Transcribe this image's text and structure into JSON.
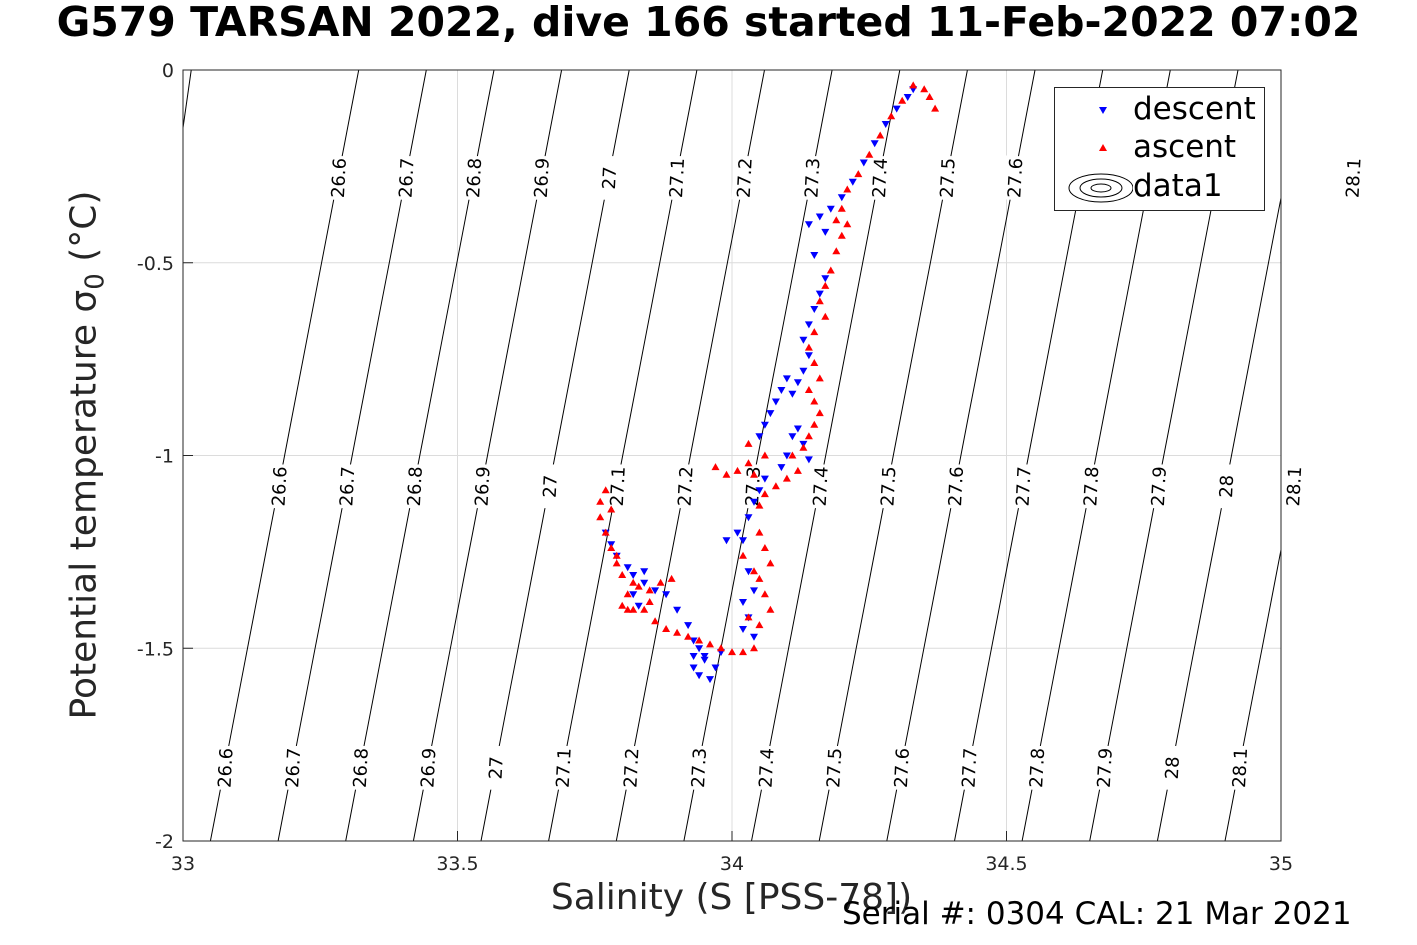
{
  "figure": {
    "title": "G579 TARSAN 2022, dive 166 started 11-Feb-2022 07:02",
    "serial_text": "Serial #: 0304  CAL: 21 Mar 2021"
  },
  "chart_data": {
    "type": "scatter",
    "title": "G579 TARSAN 2022, dive 166 started 11-Feb-2022 07:02",
    "xlabel": "Salinity (S [PSS-78])",
    "ylabel": "Potential temperature σ₀ (°C)",
    "ylabel_main": "Potential temperature σ",
    "ylabel_sub": "0",
    "ylabel_unit": "(°C)",
    "xlim": [
      33,
      35
    ],
    "ylim": [
      -2,
      0
    ],
    "xticks": [
      33,
      33.5,
      34,
      34.5,
      35
    ],
    "yticks": [
      0,
      -0.5,
      -1,
      -1.5,
      -2
    ],
    "xtick_labels": [
      "33",
      "33.5",
      "34",
      "34.5",
      "35"
    ],
    "ytick_labels": [
      "0",
      "-0.5",
      "-1",
      "-1.5",
      "-2"
    ],
    "grid": true,
    "legend_position": "top-right",
    "legend": [
      "descent",
      "ascent",
      "data1"
    ],
    "contours": {
      "name": "data1",
      "levels": [
        26.6,
        26.7,
        26.8,
        26.9,
        27,
        27.1,
        27.2,
        27.3,
        27.4,
        27.5,
        27.6,
        27.7,
        27.8,
        27.9,
        28,
        28.1
      ],
      "level_labels": [
        "26.6",
        "26.7",
        "26.8",
        "26.9",
        "27",
        "27.1",
        "27.2",
        "27.3",
        "27.4",
        "27.5",
        "27.6",
        "27.7",
        "27.8",
        "27.9",
        "28",
        "28.1"
      ],
      "label_rows": [
        {
          "y": -0.28,
          "labels": [
            "26.6",
            "26.7",
            "26.8",
            "26.9",
            "27",
            "27.1",
            "27.2",
            "27.3",
            "27.4",
            "27.5",
            "27.6",
            "27.7",
            "28.1"
          ]
        },
        {
          "y": -1.08,
          "labels": [
            "26.6",
            "26.7",
            "26.8",
            "26.9",
            "27",
            "27.1",
            "27.2",
            "27.3",
            "27.4",
            "27.5",
            "27.6",
            "27.7",
            "27.8",
            "27.9",
            "28",
            "28.1"
          ]
        },
        {
          "y": -1.81,
          "labels": [
            "26.6",
            "26.7",
            "26.8",
            "26.9",
            "27",
            "27.1",
            "27.2",
            "27.3",
            "27.4",
            "27.5",
            "27.6",
            "27.7",
            "27.8",
            "27.9",
            "28",
            "28.1"
          ]
        }
      ],
      "color": "#000000"
    },
    "series": [
      {
        "name": "descent",
        "marker": "triangle-down",
        "color": "#0000ff",
        "points": [
          [
            34.33,
            -0.05
          ],
          [
            34.32,
            -0.07
          ],
          [
            34.3,
            -0.1
          ],
          [
            34.28,
            -0.14
          ],
          [
            34.26,
            -0.19
          ],
          [
            34.24,
            -0.24
          ],
          [
            34.22,
            -0.29
          ],
          [
            34.2,
            -0.33
          ],
          [
            34.18,
            -0.36
          ],
          [
            34.16,
            -0.38
          ],
          [
            34.14,
            -0.4
          ],
          [
            34.17,
            -0.42
          ],
          [
            34.15,
            -0.48
          ],
          [
            34.17,
            -0.54
          ],
          [
            34.16,
            -0.58
          ],
          [
            34.15,
            -0.62
          ],
          [
            34.14,
            -0.66
          ],
          [
            34.13,
            -0.7
          ],
          [
            34.14,
            -0.74
          ],
          [
            34.13,
            -0.78
          ],
          [
            34.12,
            -0.81
          ],
          [
            34.11,
            -0.84
          ],
          [
            34.1,
            -0.8
          ],
          [
            34.09,
            -0.83
          ],
          [
            34.08,
            -0.86
          ],
          [
            34.07,
            -0.89
          ],
          [
            34.06,
            -0.92
          ],
          [
            34.05,
            -0.95
          ],
          [
            34.12,
            -0.93
          ],
          [
            34.13,
            -0.97
          ],
          [
            34.14,
            -1.01
          ],
          [
            34.1,
            -1.0
          ],
          [
            34.11,
            -0.95
          ],
          [
            34.09,
            -1.03
          ],
          [
            34.06,
            -1.06
          ],
          [
            34.05,
            -1.09
          ],
          [
            34.04,
            -1.12
          ],
          [
            34.03,
            -1.16
          ],
          [
            34.01,
            -1.2
          ],
          [
            33.99,
            -1.22
          ],
          [
            34.02,
            -1.22
          ],
          [
            34.03,
            -1.3
          ],
          [
            34.04,
            -1.35
          ],
          [
            34.02,
            -1.38
          ],
          [
            34.03,
            -1.42
          ],
          [
            34.02,
            -1.45
          ],
          [
            34.04,
            -1.47
          ],
          [
            33.77,
            -1.2
          ],
          [
            33.78,
            -1.23
          ],
          [
            33.79,
            -1.26
          ],
          [
            33.81,
            -1.29
          ],
          [
            33.82,
            -1.31
          ],
          [
            33.84,
            -1.33
          ],
          [
            33.86,
            -1.35
          ],
          [
            33.88,
            -1.36
          ],
          [
            33.84,
            -1.3
          ],
          [
            33.82,
            -1.36
          ],
          [
            33.83,
            -1.39
          ],
          [
            33.9,
            -1.4
          ],
          [
            33.92,
            -1.44
          ],
          [
            33.93,
            -1.48
          ],
          [
            33.94,
            -1.5
          ],
          [
            33.95,
            -1.52
          ],
          [
            33.93,
            -1.55
          ],
          [
            33.94,
            -1.57
          ],
          [
            33.96,
            -1.58
          ],
          [
            33.97,
            -1.55
          ],
          [
            33.95,
            -1.53
          ],
          [
            33.98,
            -1.51
          ],
          [
            33.93,
            -1.52
          ]
        ]
      },
      {
        "name": "ascent",
        "marker": "triangle-up",
        "color": "#ff0000",
        "points": [
          [
            34.37,
            -0.1
          ],
          [
            34.36,
            -0.07
          ],
          [
            34.35,
            -0.05
          ],
          [
            34.33,
            -0.04
          ],
          [
            34.31,
            -0.08
          ],
          [
            34.29,
            -0.12
          ],
          [
            34.27,
            -0.17
          ],
          [
            34.25,
            -0.22
          ],
          [
            34.23,
            -0.27
          ],
          [
            34.21,
            -0.31
          ],
          [
            34.2,
            -0.36
          ],
          [
            34.19,
            -0.39
          ],
          [
            34.21,
            -0.4
          ],
          [
            34.2,
            -0.43
          ],
          [
            34.19,
            -0.47
          ],
          [
            34.18,
            -0.52
          ],
          [
            34.17,
            -0.56
          ],
          [
            34.16,
            -0.6
          ],
          [
            34.17,
            -0.64
          ],
          [
            34.15,
            -0.68
          ],
          [
            34.14,
            -0.72
          ],
          [
            34.15,
            -0.76
          ],
          [
            34.16,
            -0.8
          ],
          [
            34.14,
            -0.83
          ],
          [
            34.15,
            -0.86
          ],
          [
            34.16,
            -0.89
          ],
          [
            34.15,
            -0.92
          ],
          [
            34.14,
            -0.95
          ],
          [
            34.13,
            -0.98
          ],
          [
            34.11,
            -1.0
          ],
          [
            34.12,
            -1.04
          ],
          [
            34.1,
            -1.06
          ],
          [
            34.08,
            -1.08
          ],
          [
            34.06,
            -1.1
          ],
          [
            34.05,
            -1.13
          ],
          [
            34.04,
            -1.05
          ],
          [
            34.03,
            -1.02
          ],
          [
            34.01,
            -1.04
          ],
          [
            33.99,
            -1.05
          ],
          [
            33.97,
            -1.03
          ],
          [
            34.03,
            -0.97
          ],
          [
            34.06,
            -1.0
          ],
          [
            34.05,
            -1.2
          ],
          [
            34.06,
            -1.24
          ],
          [
            34.07,
            -1.28
          ],
          [
            34.05,
            -1.32
          ],
          [
            34.06,
            -1.36
          ],
          [
            34.07,
            -1.4
          ],
          [
            34.05,
            -1.44
          ],
          [
            34.03,
            -1.42
          ],
          [
            34.04,
            -1.3
          ],
          [
            34.02,
            -1.26
          ],
          [
            34.04,
            -1.5
          ],
          [
            34.02,
            -1.51
          ],
          [
            34.0,
            -1.51
          ],
          [
            33.98,
            -1.5
          ],
          [
            33.96,
            -1.49
          ],
          [
            33.94,
            -1.48
          ],
          [
            33.92,
            -1.47
          ],
          [
            33.9,
            -1.46
          ],
          [
            33.88,
            -1.45
          ],
          [
            33.86,
            -1.43
          ],
          [
            33.84,
            -1.4
          ],
          [
            33.82,
            -1.4
          ],
          [
            33.8,
            -1.39
          ],
          [
            33.81,
            -1.36
          ],
          [
            33.83,
            -1.34
          ],
          [
            33.85,
            -1.35
          ],
          [
            33.87,
            -1.33
          ],
          [
            33.89,
            -1.32
          ],
          [
            33.85,
            -1.38
          ],
          [
            33.82,
            -1.33
          ],
          [
            33.8,
            -1.31
          ],
          [
            33.79,
            -1.28
          ],
          [
            33.78,
            -1.24
          ],
          [
            33.77,
            -1.2
          ],
          [
            33.76,
            -1.16
          ],
          [
            33.76,
            -1.12
          ],
          [
            33.77,
            -1.09
          ],
          [
            33.78,
            -1.14
          ],
          [
            33.79,
            -1.26
          ],
          [
            33.81,
            -1.4
          ]
        ]
      }
    ]
  }
}
